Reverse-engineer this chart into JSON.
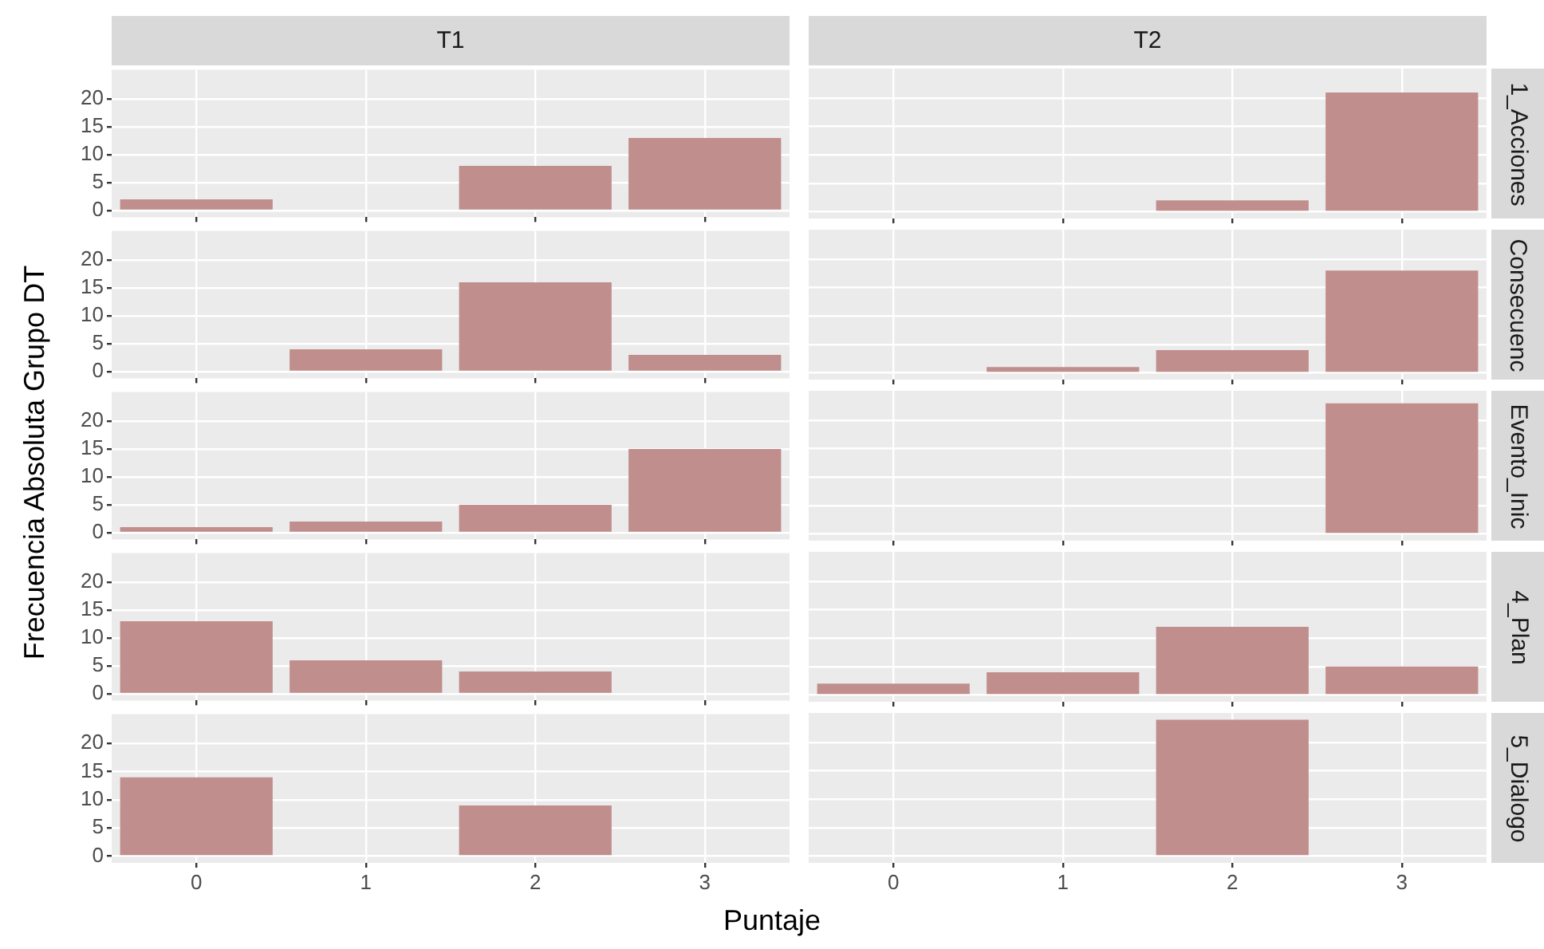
{
  "chart_data": [
    {
      "type": "bar",
      "title": "T1",
      "categories": [
        "0",
        "1",
        "2",
        "3"
      ],
      "values": [
        2,
        0,
        8,
        13
      ],
      "color": "#c08e8c",
      "ylim": [
        -1.2,
        25.2
      ],
      "yticks": [
        0,
        5,
        10,
        15,
        20
      ],
      "grid": true,
      "tick_labels": "y"
    },
    {
      "type": "bar",
      "title": "T2",
      "y2label": "1_Acciones",
      "categories": [
        "0",
        "1",
        "2",
        "3"
      ],
      "values": [
        0,
        0,
        2,
        21
      ],
      "color": "#c08e8c",
      "ylim": [
        -1.2,
        25.2
      ],
      "yticks": [
        0,
        5,
        10,
        15,
        20
      ],
      "grid": true,
      "tick_labels": false
    },
    {
      "type": "bar",
      "categories": [
        "0",
        "1",
        "2",
        "3"
      ],
      "values": [
        0,
        4,
        16,
        3
      ],
      "color": "#c08e8c",
      "ylim": [
        -1.2,
        25.2
      ],
      "yticks": [
        0,
        5,
        10,
        15,
        20
      ],
      "grid": true,
      "tick_labels": "y"
    },
    {
      "type": "bar",
      "y2label": "Consecuenc",
      "categories": [
        "0",
        "1",
        "2",
        "3"
      ],
      "values": [
        0,
        1,
        4,
        18
      ],
      "color": "#c08e8c",
      "ylim": [
        -1.2,
        25.2
      ],
      "yticks": [
        0,
        5,
        10,
        15,
        20
      ],
      "grid": true,
      "tick_labels": false
    },
    {
      "type": "bar",
      "ylabel": "Frecuencia Absoluta Grupo DT",
      "categories": [
        "0",
        "1",
        "2",
        "3"
      ],
      "values": [
        1,
        2,
        5,
        15
      ],
      "color": "#c08e8c",
      "ylim": [
        -1.2,
        25.2
      ],
      "yticks": [
        0,
        5,
        10,
        15,
        20
      ],
      "grid": true,
      "tick_labels": "y"
    },
    {
      "type": "bar",
      "y2label": "Evento_Inic",
      "categories": [
        "0",
        "1",
        "2",
        "3"
      ],
      "values": [
        0,
        0,
        0,
        23
      ],
      "color": "#c08e8c",
      "ylim": [
        -1.2,
        25.2
      ],
      "yticks": [
        0,
        5,
        10,
        15,
        20
      ],
      "grid": true,
      "tick_labels": false
    },
    {
      "type": "bar",
      "categories": [
        "0",
        "1",
        "2",
        "3"
      ],
      "values": [
        13,
        6,
        4,
        0
      ],
      "color": "#c08e8c",
      "ylim": [
        -1.2,
        25.2
      ],
      "yticks": [
        0,
        5,
        10,
        15,
        20
      ],
      "grid": true,
      "tick_labels": "y"
    },
    {
      "type": "bar",
      "y2label": "4_Plan",
      "categories": [
        "0",
        "1",
        "2",
        "3"
      ],
      "values": [
        2,
        4,
        12,
        5
      ],
      "color": "#c08e8c",
      "ylim": [
        -1.2,
        25.2
      ],
      "yticks": [
        0,
        5,
        10,
        15,
        20
      ],
      "grid": true,
      "tick_labels": false
    },
    {
      "type": "bar",
      "xlabel": "Puntaje",
      "categories": [
        "0",
        "1",
        "2",
        "3"
      ],
      "values": [
        14,
        0,
        9,
        0
      ],
      "color": "#c08e8c",
      "ylim": [
        -1.2,
        25.2
      ],
      "yticks": [
        0,
        5,
        10,
        15,
        20
      ],
      "grid": true
    },
    {
      "type": "bar",
      "y2label": "5_Dialogo",
      "categories": [
        "0",
        "1",
        "2",
        "3"
      ],
      "values": [
        0,
        0,
        24,
        0
      ],
      "color": "#c08e8c",
      "ylim": [
        -1.2,
        25.2
      ],
      "yticks": [
        0,
        5,
        10,
        15,
        20
      ],
      "grid": true,
      "tick_labels": "x"
    }
  ]
}
